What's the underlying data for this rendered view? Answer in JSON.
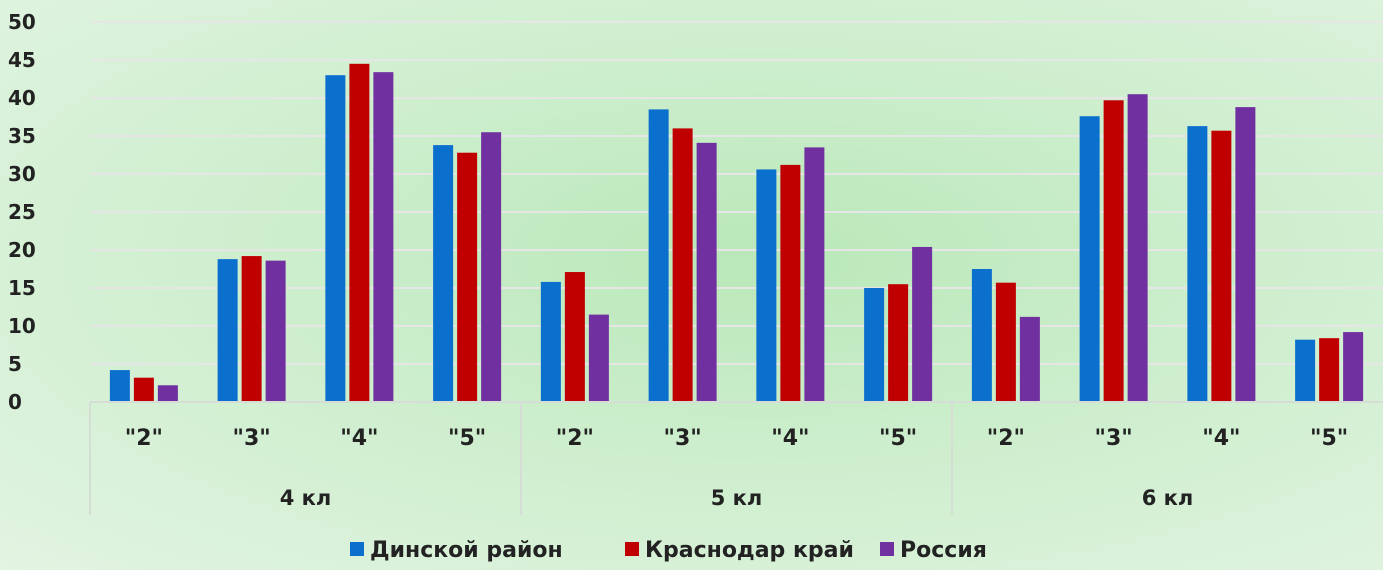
{
  "chart_data": {
    "type": "bar",
    "groups": [
      "4 кл",
      "5 кл",
      "6 кл"
    ],
    "categories": [
      "\"2\"",
      "\"3\"",
      "\"4\"",
      "\"5\""
    ],
    "x": [
      "4 кл \"2\"",
      "4 кл \"3\"",
      "4 кл \"4\"",
      "4 кл \"5\"",
      "5 кл \"2\"",
      "5 кл \"3\"",
      "5 кл \"4\"",
      "5 кл \"5\"",
      "6 кл \"2\"",
      "6 кл \"3\"",
      "6 кл \"4\"",
      "6 кл \"5\""
    ],
    "series": [
      {
        "name": "Динской район",
        "color": "#0b6fce",
        "values": [
          4.2,
          18.8,
          43.0,
          33.8,
          15.8,
          38.5,
          30.6,
          15.0,
          17.5,
          37.6,
          36.3,
          8.2
        ]
      },
      {
        "name": "Краснодар край",
        "color": "#c00000",
        "values": [
          3.2,
          19.2,
          44.5,
          32.8,
          17.1,
          36.0,
          31.2,
          15.5,
          15.7,
          39.7,
          35.7,
          8.4
        ]
      },
      {
        "name": "Россия",
        "color": "#7030a0",
        "values": [
          2.2,
          18.6,
          43.4,
          35.5,
          11.5,
          34.1,
          33.5,
          20.4,
          11.2,
          40.5,
          38.8,
          9.2
        ]
      }
    ],
    "yticks": [
      "0",
      "5",
      "10",
      "15",
      "20",
      "25",
      "30",
      "35",
      "40",
      "45",
      "50"
    ],
    "ylim": [
      0,
      50
    ],
    "grid": true,
    "legend": "bottom"
  }
}
